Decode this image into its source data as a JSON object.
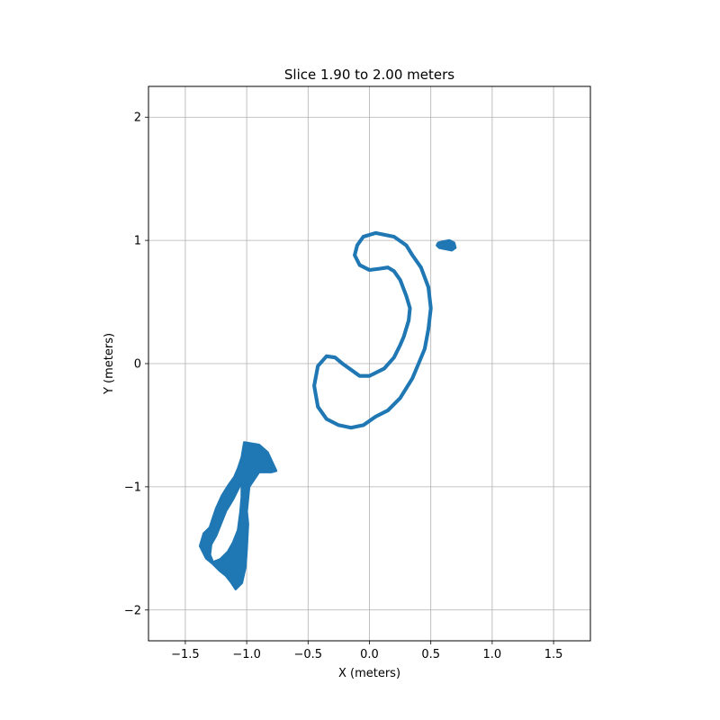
{
  "chart_data": {
    "type": "scatter",
    "title": "Slice 1.90 to 2.00 meters",
    "xlabel": "X (meters)",
    "ylabel": "Y (meters)",
    "xlim": [
      -1.8,
      1.8
    ],
    "ylim": [
      -2.25,
      2.25
    ],
    "x_ticks": [
      -1.5,
      -1.0,
      -0.5,
      0.0,
      0.5,
      1.0,
      1.5
    ],
    "x_tick_labels": [
      "−1.5",
      "−1.0",
      "−0.5",
      "0.0",
      "0.5",
      "1.0",
      "1.5"
    ],
    "y_ticks": [
      -2,
      -1,
      0,
      1,
      2
    ],
    "y_tick_labels": [
      "−2",
      "−1",
      "0",
      "1",
      "2"
    ],
    "grid": true,
    "point_color": "#1f77b4",
    "series": [
      {
        "shape": "closed-loop",
        "thickness": 0.03,
        "x": [
          0.05,
          0.2,
          0.3,
          0.35,
          0.42,
          0.48,
          0.5,
          0.48,
          0.45,
          0.4,
          0.35,
          0.25,
          0.15,
          0.05,
          -0.05,
          -0.15,
          -0.25,
          -0.35,
          -0.42,
          -0.45,
          -0.42,
          -0.35,
          -0.28,
          -0.22,
          -0.15,
          -0.08,
          0.0,
          0.12,
          0.2,
          0.25,
          0.28,
          0.32,
          0.33,
          0.3,
          0.25,
          0.2,
          0.15,
          0.08,
          0.0,
          -0.08,
          -0.12,
          -0.1,
          -0.05
        ],
        "y": [
          1.06,
          1.03,
          0.96,
          0.88,
          0.78,
          0.62,
          0.45,
          0.28,
          0.12,
          0.0,
          -0.12,
          -0.28,
          -0.38,
          -0.43,
          -0.5,
          -0.52,
          -0.5,
          -0.45,
          -0.35,
          -0.18,
          -0.02,
          0.06,
          0.05,
          0.0,
          -0.05,
          -0.1,
          -0.1,
          -0.04,
          0.05,
          0.15,
          0.22,
          0.35,
          0.45,
          0.55,
          0.68,
          0.75,
          0.78,
          0.77,
          0.76,
          0.8,
          0.88,
          0.96,
          1.03
        ]
      },
      {
        "shape": "blob",
        "thickness": 0.02,
        "x": [
          0.56,
          0.6,
          0.65,
          0.69,
          0.7,
          0.67,
          0.62,
          0.57,
          0.55
        ],
        "y": [
          0.98,
          0.99,
          1.0,
          0.98,
          0.94,
          0.92,
          0.93,
          0.94,
          0.96
        ]
      },
      {
        "shape": "filled-loop",
        "thickness": 0.02,
        "x": [
          -1.02,
          -0.9,
          -0.83,
          -0.76,
          -0.8,
          -0.9,
          -0.98,
          -1.0,
          -0.99,
          -1.0,
          -1.01,
          -1.04,
          -1.09,
          -1.13,
          -1.17,
          -1.22,
          -1.28,
          -1.33,
          -1.38,
          -1.35,
          -1.3,
          -1.28,
          -1.25,
          -1.2,
          -1.15,
          -1.1,
          -1.07,
          -1.04
        ],
        "y": [
          -0.64,
          -0.66,
          -0.72,
          -0.87,
          -0.88,
          -0.88,
          -1.0,
          -1.2,
          -1.3,
          -1.5,
          -1.65,
          -1.78,
          -1.83,
          -1.77,
          -1.72,
          -1.68,
          -1.62,
          -1.58,
          -1.48,
          -1.38,
          -1.33,
          -1.27,
          -1.18,
          -1.07,
          -0.99,
          -0.92,
          -0.85,
          -0.76
        ]
      },
      {
        "shape": "hole",
        "thickness": 0.0,
        "x": [
          -1.05,
          -1.1,
          -1.16,
          -1.2,
          -1.24,
          -1.28,
          -1.29,
          -1.27,
          -1.22,
          -1.16,
          -1.12,
          -1.08,
          -1.06,
          -1.05
        ],
        "y": [
          -1.0,
          -1.1,
          -1.2,
          -1.3,
          -1.4,
          -1.47,
          -1.55,
          -1.6,
          -1.58,
          -1.52,
          -1.45,
          -1.35,
          -1.2,
          -1.08
        ]
      }
    ]
  }
}
